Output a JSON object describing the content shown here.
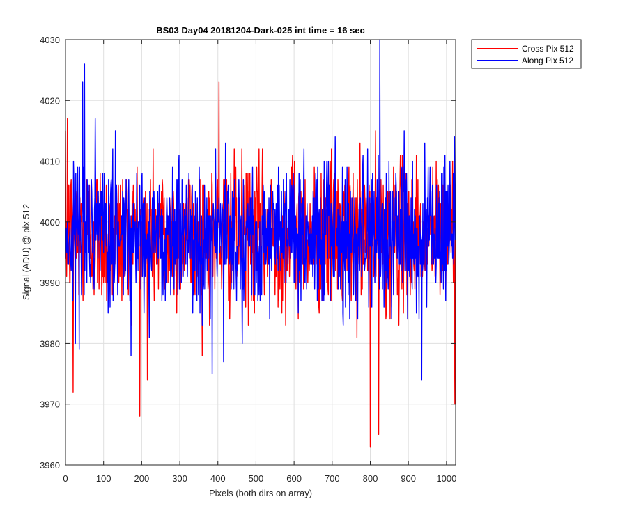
{
  "chart_data": {
    "type": "line",
    "title": "BS03 Day04 20181204-Dark-025 int time = 16 sec",
    "xlabel": "Pixels (both dirs on array)",
    "ylabel": "Signal (ADU) @ pix 512",
    "xlim": [
      0,
      1024
    ],
    "ylim": [
      3960,
      4030
    ],
    "xticks": [
      0,
      100,
      200,
      300,
      400,
      500,
      600,
      700,
      800,
      900,
      1000
    ],
    "yticks": [
      3960,
      3970,
      3980,
      3990,
      4000,
      4010,
      4020,
      4030
    ],
    "grid": true,
    "legend": {
      "placement": "outside-top-right"
    },
    "series": [
      {
        "name": "Cross Pix 512",
        "color": "#ff0000",
        "mean": 3998,
        "std": 6,
        "n_points": 1024,
        "notable_points": [
          {
            "x": 5,
            "y": 4017
          },
          {
            "x": 20,
            "y": 3972
          },
          {
            "x": 195,
            "y": 3968
          },
          {
            "x": 215,
            "y": 3974
          },
          {
            "x": 403,
            "y": 4023
          },
          {
            "x": 800,
            "y": 3963
          },
          {
            "x": 822,
            "y": 3965
          },
          {
            "x": 1022,
            "y": 3970
          }
        ]
      },
      {
        "name": "Along Pix 512",
        "color": "#0000ff",
        "mean": 3998,
        "std": 6,
        "n_points": 1024,
        "notable_points": [
          {
            "x": 50,
            "y": 4026
          },
          {
            "x": 45,
            "y": 4023
          },
          {
            "x": 385,
            "y": 3975
          },
          {
            "x": 415,
            "y": 3977
          },
          {
            "x": 825,
            "y": 4030
          },
          {
            "x": 935,
            "y": 3974
          }
        ]
      }
    ]
  },
  "colors": {
    "axis": "#262626",
    "grid": "#dfdfdf",
    "legend_border": "#262626"
  }
}
